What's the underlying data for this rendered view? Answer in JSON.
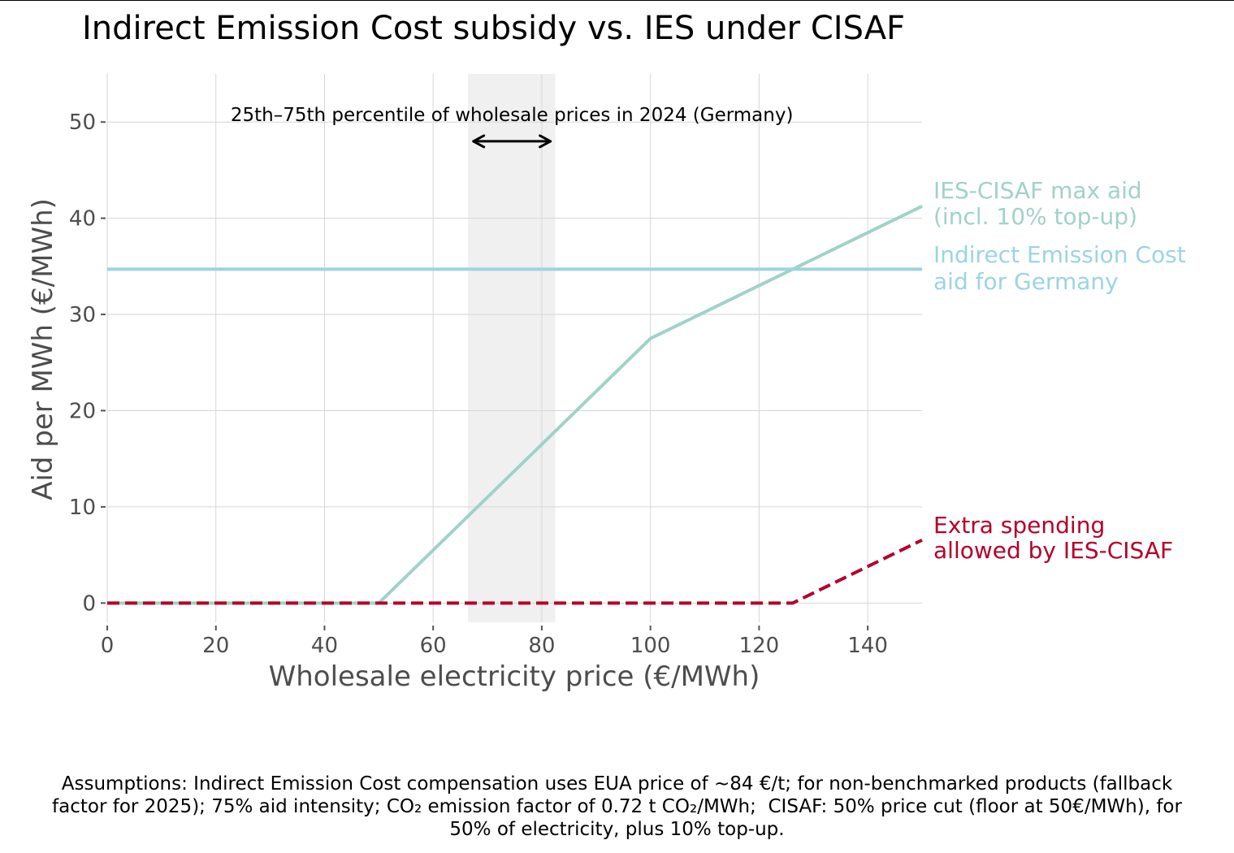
{
  "chart_data": {
    "type": "line",
    "title": "Indirect Emission Cost subsidy vs. IES under CISAF",
    "xlabel": "Wholesale electricity price (€/MWh)",
    "ylabel": "Aid per MWh (€/MWh)",
    "xlim": [
      0,
      150
    ],
    "ylim": [
      -2,
      55
    ],
    "xticks": [
      0,
      20,
      40,
      60,
      80,
      100,
      120,
      140
    ],
    "yticks": [
      0,
      10,
      20,
      30,
      40,
      50
    ],
    "grid": true,
    "shaded_region": {
      "x_range": [
        66.4,
        82.5
      ],
      "label": "25th–75th percentile of wholesale prices in 2024 (Germany)",
      "arrow_range": [
        67.4,
        81.6
      ],
      "arrow_y": 48,
      "label_x": 74.5,
      "label_y": 50
    },
    "series": [
      {
        "name": "Indirect Emission Cost aid for Germany",
        "label_lines": [
          "Indirect Emission Cost",
          "aid for Germany"
        ],
        "color": "#9bd4e4",
        "style": "solid",
        "x": [
          0,
          150
        ],
        "y": [
          34.7,
          34.7
        ]
      },
      {
        "name": "IES-CISAF max aid (incl. 10% top-up)",
        "label_lines": [
          "IES-CISAF max aid",
          "(incl. 10% top-up)"
        ],
        "color": "#a0d2c8",
        "style": "solid",
        "x": [
          0,
          50,
          100,
          150
        ],
        "y": [
          0,
          0,
          27.5,
          41.25
        ]
      },
      {
        "name": "Extra spending allowed by IES-CISAF",
        "label_lines": [
          "Extra spending",
          "allowed by IES-CISAF"
        ],
        "color": "#b5002a",
        "style": "dashed",
        "x": [
          0,
          126.2,
          150
        ],
        "y": [
          0,
          0,
          6.55
        ]
      }
    ]
  },
  "footnote": {
    "lines": [
      "Assumptions: Indirect Emission Cost compensation uses EUA price of ~84 €/t; for non-benchmarked products (fallback",
      "factor for 2025); 75% aid intensity; CO₂ emission factor of 0.72 t CO₂/MWh;  CISAF: 50% price cut (floor at 50€/MWh), for",
      "50% of electricity, plus 10% top-up."
    ]
  }
}
